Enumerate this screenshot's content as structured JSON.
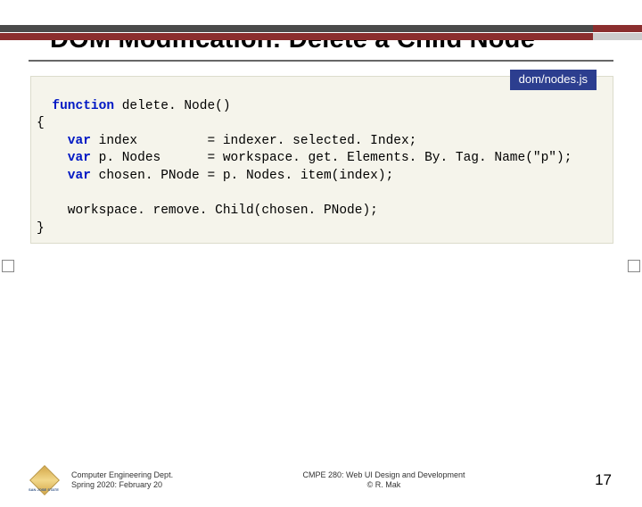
{
  "slide": {
    "title": "DOM Modification: Delete a Child Node",
    "file_label": "dom/nodes.js",
    "code": {
      "l1a": "function",
      "l1b": " delete. Node()",
      "l2": "{",
      "l3a": "    var",
      "l3b": " index         = indexer. selected. Index;",
      "l4a": "    var",
      "l4b": " p. Nodes      = workspace. get. Elements. By. Tag. Name(\"p\");",
      "l5a": "    var",
      "l5b": " chosen. PNode = p. Nodes. item(index);",
      "l6": " ",
      "l7": "    workspace. remove. Child(chosen. PNode);",
      "l8": "}"
    },
    "footer": {
      "dept_line1": "Computer Engineering Dept.",
      "dept_line2": "Spring 2020: February 20",
      "course_line1": "CMPE 280: Web UI Design and Development",
      "course_line2": "© R. Mak",
      "page": "17",
      "logo_label": "SAN JOSE STATE"
    },
    "colors": {
      "bar_dark": "#4a4a4a",
      "bar_maroon": "#8b2e2e",
      "bar_light": "#cccccc",
      "file_label_bg": "#2c3e8f",
      "code_bg": "#f5f4eb",
      "keyword": "#0018c4"
    }
  }
}
